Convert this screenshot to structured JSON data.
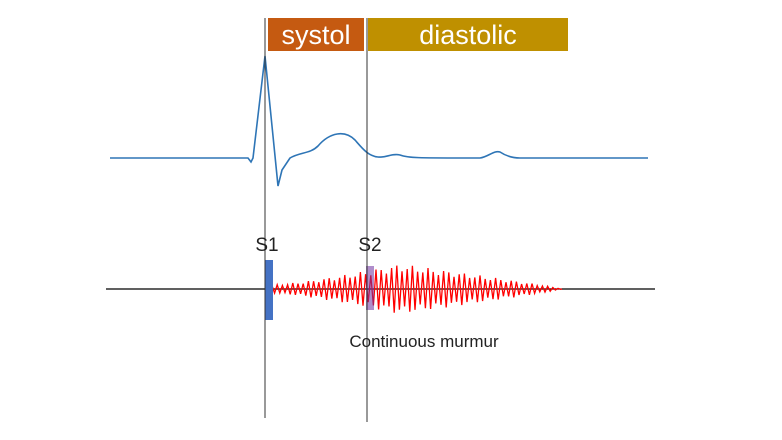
{
  "phases": {
    "systole": {
      "label": "systol",
      "color": "#C55A11"
    },
    "diastole": {
      "label": "diastolic",
      "color": "#BF9000"
    }
  },
  "heart_sounds": {
    "s1": {
      "label": "S1",
      "color": "#4472C4"
    },
    "s2": {
      "label": "S2",
      "color": "#7030A0"
    }
  },
  "murmur": {
    "label": "Continuous murmur",
    "color": "#FF0000"
  },
  "ecg": {
    "color": "#2E75B6"
  }
}
